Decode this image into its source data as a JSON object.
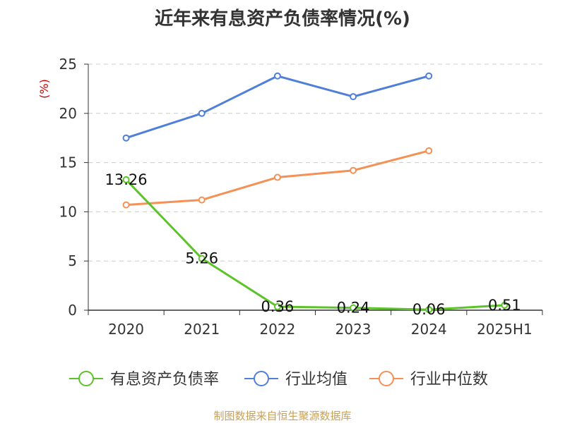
{
  "chart_data": {
    "type": "line",
    "title": "近年来有息资产负债率情况(%)",
    "ylabel": "(%)",
    "xlabel": "",
    "categories": [
      "2020",
      "2021",
      "2022",
      "2023",
      "2024",
      "2025H1"
    ],
    "ylim": [
      0,
      25
    ],
    "yticks": [
      0,
      5,
      10,
      15,
      20,
      25
    ],
    "grid": true,
    "legend_position": "bottom",
    "series": [
      {
        "name": "有息资产负债率",
        "color": "#5cc42a",
        "values": [
          13.26,
          5.26,
          0.36,
          0.24,
          0.06,
          0.51
        ],
        "labels": [
          "13.26",
          "5.26",
          "0.36",
          "0.24",
          "0.06",
          "0.51"
        ]
      },
      {
        "name": "行业均值",
        "color": "#4f7fd8",
        "values": [
          17.5,
          20.0,
          23.8,
          21.7,
          23.8,
          null
        ]
      },
      {
        "name": "行业中位数",
        "color": "#f39157",
        "values": [
          10.7,
          11.2,
          13.5,
          14.2,
          16.2,
          null
        ]
      }
    ]
  },
  "source": "制图数据来自恒生聚源数据库"
}
